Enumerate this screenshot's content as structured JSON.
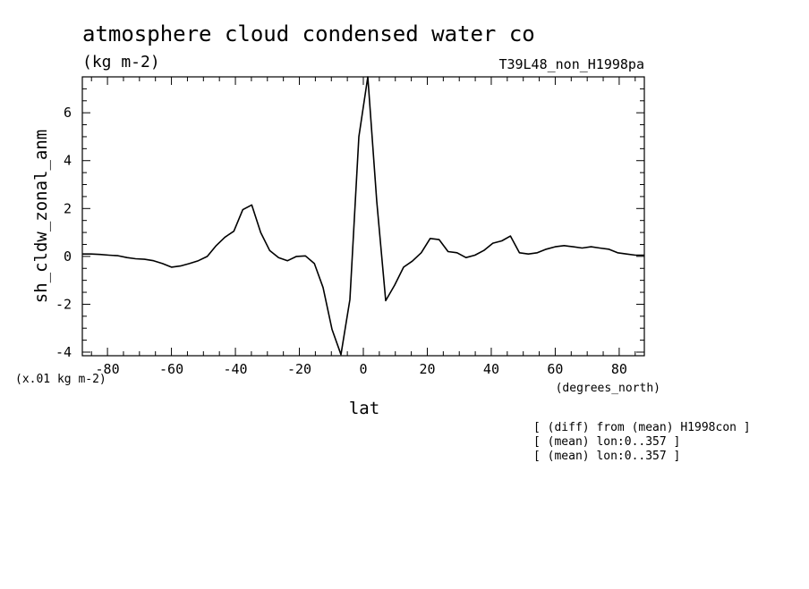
{
  "chart_data": {
    "type": "line",
    "title": "atmosphere cloud condensed water co",
    "units_label": "(kg m-2)",
    "run_label": "T39L48_non_H1998pa",
    "xlabel": "lat",
    "xunits": "(degrees_north)",
    "ylabel": "sh_cldw_zonal_anm",
    "yscale_label": "(x.01 kg m-2)",
    "xlim": [
      -87.86,
      87.86
    ],
    "ylim": [
      -4.15,
      7.5
    ],
    "xticks": [
      -80,
      -60,
      -40,
      -20,
      0,
      20,
      40,
      60,
      80
    ],
    "xtick_labels": [
      "-80",
      "-60",
      "-40",
      "-20",
      "0",
      "20",
      "40",
      "60",
      "80"
    ],
    "yticks": [
      -4,
      -2,
      0,
      2,
      4,
      6
    ],
    "ytick_labels": [
      "-4",
      "-2",
      "0",
      "2",
      "4",
      "6"
    ],
    "notes": [
      "[ (diff) from (mean) H1998con ]",
      "[ (mean) lon:0..357 ]",
      "[ (mean) lon:0..357 ]"
    ],
    "series": [
      {
        "x": [
          -87.9,
          -85.1,
          -82.3,
          -79.5,
          -76.7,
          -73.9,
          -71.2,
          -68.4,
          -65.6,
          -62.8,
          -60.0,
          -57.2,
          -54.4,
          -51.6,
          -48.8,
          -46.0,
          -43.3,
          -40.5,
          -37.7,
          -34.9,
          -32.1,
          -29.3,
          -26.5,
          -23.7,
          -20.9,
          -18.1,
          -15.3,
          -12.6,
          -9.8,
          -7.0,
          -4.2,
          -1.4,
          1.4,
          4.2,
          7.0,
          9.8,
          12.6,
          15.3,
          18.1,
          20.9,
          23.7,
          26.5,
          29.3,
          32.1,
          34.9,
          37.7,
          40.5,
          43.3,
          46.0,
          48.8,
          51.6,
          54.4,
          57.2,
          60.0,
          62.8,
          65.6,
          68.4,
          71.2,
          73.9,
          76.7,
          79.5,
          82.3,
          85.1,
          87.9
        ],
        "values": [
          0.1,
          0.1,
          0.08,
          0.05,
          0.03,
          -0.05,
          -0.1,
          -0.12,
          -0.18,
          -0.3,
          -0.45,
          -0.4,
          -0.3,
          -0.18,
          0.0,
          0.45,
          0.8,
          1.05,
          1.95,
          2.15,
          1.0,
          0.25,
          -0.05,
          -0.18,
          0.0,
          0.02,
          -0.3,
          -1.3,
          -3.05,
          -4.1,
          -1.8,
          5.0,
          7.5,
          2.3,
          -1.85,
          -1.2,
          -0.45,
          -0.2,
          0.15,
          0.75,
          0.7,
          0.2,
          0.15,
          -0.05,
          0.05,
          0.25,
          0.55,
          0.65,
          0.85,
          0.15,
          0.1,
          0.15,
          0.3,
          0.4,
          0.45,
          0.4,
          0.35,
          0.4,
          0.35,
          0.3,
          0.15,
          0.1,
          0.05,
          0.05
        ]
      }
    ]
  }
}
